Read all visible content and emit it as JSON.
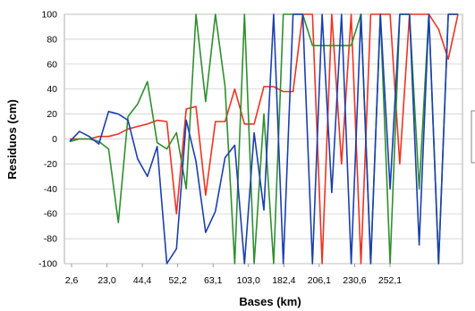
{
  "chart_data": {
    "type": "line",
    "title": "",
    "xlabel": "Bases (km)",
    "ylabel": "Residuos (cm)",
    "ylim": [
      -100,
      100
    ],
    "yticks": [
      "100",
      "80",
      "60",
      "40",
      "20",
      "0",
      "-20",
      "-40",
      "-60",
      "-80",
      "-100"
    ],
    "xticks": [
      "2,6",
      "23,0",
      "44,4",
      "52,2",
      "63,1",
      "103,0",
      "182,4",
      "206,1",
      "230,6",
      "252,1"
    ],
    "grid": true,
    "legend": "partially visible at right edge, entries cropped",
    "colors": {
      "red": "#ee3322",
      "green": "#2f8f2f",
      "blue": "#1b3fae"
    },
    "series": [
      {
        "color": "red",
        "values": [
          0,
          0,
          0,
          2,
          2,
          4,
          8,
          10,
          12,
          15,
          14,
          -60,
          24,
          26,
          -45,
          14,
          14,
          40,
          12,
          12,
          42,
          42,
          38,
          38,
          100,
          100,
          -100,
          100,
          -20,
          100,
          -100,
          100,
          100,
          100,
          -20,
          100,
          100,
          100,
          88,
          64,
          100
        ]
      },
      {
        "color": "green",
        "values": [
          -2,
          0,
          0,
          -2,
          -8,
          -67,
          18,
          28,
          46,
          -3,
          -8,
          5,
          -40,
          100,
          30,
          100,
          42,
          -100,
          100,
          -100,
          20,
          -100,
          100,
          100,
          100,
          75,
          75,
          75,
          75,
          75,
          100,
          -100,
          100,
          -100,
          100,
          100,
          -40,
          100,
          -100,
          100,
          100
        ]
      },
      {
        "color": "blue",
        "values": [
          -2,
          6,
          2,
          -4,
          22,
          20,
          15,
          -16,
          -30,
          -6,
          -100,
          -88,
          15,
          -18,
          -75,
          -58,
          -15,
          -5,
          -100,
          5,
          -57,
          100,
          -100,
          100,
          100,
          -100,
          100,
          -43,
          100,
          -100,
          100,
          -100,
          100,
          -40,
          100,
          100,
          -85,
          100,
          -100,
          100,
          100
        ]
      }
    ]
  }
}
